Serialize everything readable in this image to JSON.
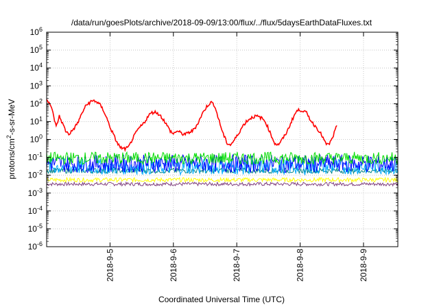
{
  "chart_data": {
    "type": "line",
    "title": "/data/run/goesPlots/archive/2018-09-09/13:00/flux/../flux/5daysEarthDataFluxes.txt",
    "xlabel": "Coordinated Universal Time (UTC)",
    "ylabel": {
      "prefix": "protons/cm",
      "sup": "2",
      "suffix": "-s-sr-MeV"
    },
    "y_scale": "log",
    "ylim": [
      1e-06,
      1000000.0
    ],
    "y_tick_exponents": [
      -6,
      -5,
      -4,
      -3,
      -2,
      -1,
      0,
      1,
      2,
      3,
      4,
      5,
      6
    ],
    "y_tick_base": "10",
    "x_range_days": [
      "2018-9-4 00:00",
      "2018-9-9 13:00"
    ],
    "x_ticks": [
      "2018-9-5",
      "2018-9-6",
      "2018-9-7",
      "2018-9-8",
      "2018-9-9"
    ],
    "grid": true,
    "series": [
      {
        "color": "#ff0000",
        "points": [
          [
            4.0,
            200
          ],
          [
            4.05,
            100
          ],
          [
            4.1,
            30
          ],
          [
            4.15,
            5
          ],
          [
            4.2,
            20
          ],
          [
            4.25,
            8
          ],
          [
            4.3,
            3
          ],
          [
            4.35,
            2
          ],
          [
            4.4,
            3
          ],
          [
            4.45,
            5
          ],
          [
            4.5,
            10
          ],
          [
            4.55,
            25
          ],
          [
            4.6,
            60
          ],
          [
            4.65,
            100
          ],
          [
            4.7,
            130
          ],
          [
            4.75,
            150
          ],
          [
            4.8,
            120
          ],
          [
            4.85,
            80
          ],
          [
            4.9,
            40
          ],
          [
            4.95,
            15
          ],
          [
            5.0,
            5
          ],
          [
            5.05,
            2
          ],
          [
            5.1,
            0.8
          ],
          [
            5.15,
            0.4
          ],
          [
            5.2,
            0.3
          ],
          [
            5.25,
            0.3
          ],
          [
            5.3,
            0.4
          ],
          [
            5.35,
            1
          ],
          [
            5.4,
            2
          ],
          [
            5.45,
            4
          ],
          [
            5.5,
            6
          ],
          [
            5.55,
            10
          ],
          [
            5.6,
            20
          ],
          [
            5.65,
            30
          ],
          [
            5.7,
            35
          ],
          [
            5.75,
            30
          ],
          [
            5.8,
            20
          ],
          [
            5.85,
            12
          ],
          [
            5.9,
            6
          ],
          [
            5.95,
            3
          ],
          [
            6.0,
            2
          ],
          [
            6.05,
            3
          ],
          [
            6.1,
            2.5
          ],
          [
            6.15,
            2
          ],
          [
            6.2,
            2
          ],
          [
            6.25,
            2.5
          ],
          [
            6.3,
            3
          ],
          [
            6.35,
            5
          ],
          [
            6.4,
            10
          ],
          [
            6.45,
            25
          ],
          [
            6.5,
            50
          ],
          [
            6.55,
            90
          ],
          [
            6.6,
            120
          ],
          [
            6.65,
            80
          ],
          [
            6.7,
            20
          ],
          [
            6.75,
            5
          ],
          [
            6.8,
            1.5
          ],
          [
            6.85,
            0.6
          ],
          [
            6.9,
            0.5
          ],
          [
            6.95,
            0.8
          ],
          [
            7.0,
            1.5
          ],
          [
            7.05,
            3
          ],
          [
            7.1,
            6
          ],
          [
            7.15,
            10
          ],
          [
            7.2,
            14
          ],
          [
            7.25,
            18
          ],
          [
            7.3,
            20
          ],
          [
            7.35,
            18
          ],
          [
            7.4,
            15
          ],
          [
            7.45,
            10
          ],
          [
            7.5,
            4
          ],
          [
            7.55,
            1.5
          ],
          [
            7.6,
            0.6
          ],
          [
            7.65,
            0.5
          ],
          [
            7.7,
            0.8
          ],
          [
            7.75,
            1.5
          ],
          [
            7.8,
            3
          ],
          [
            7.85,
            8
          ],
          [
            7.9,
            20
          ],
          [
            7.95,
            40
          ],
          [
            8.0,
            45
          ],
          [
            8.05,
            40
          ],
          [
            8.1,
            30
          ],
          [
            8.15,
            15
          ],
          [
            8.2,
            8
          ],
          [
            8.25,
            5
          ],
          [
            8.3,
            3
          ],
          [
            8.35,
            1.5
          ],
          [
            8.4,
            0.6
          ],
          [
            8.45,
            0.5
          ],
          [
            8.5,
            1
          ],
          [
            8.55,
            3
          ],
          [
            8.58,
            6
          ]
        ]
      },
      {
        "color": "#00dd00",
        "level": 0.09,
        "jitter": 0.35
      },
      {
        "color": "#0000ff",
        "level": 0.045,
        "jitter": 0.5
      },
      {
        "color": "#00aaff",
        "level": 0.03,
        "jitter": 0.45
      },
      {
        "color": "#008080",
        "level": 0.018,
        "jitter": 0.15
      },
      {
        "color": "#ffff00",
        "level": 0.0055,
        "jitter": 0.12
      },
      {
        "color": "#7f3f7f",
        "level": 0.0032,
        "jitter": 0.1
      }
    ]
  }
}
